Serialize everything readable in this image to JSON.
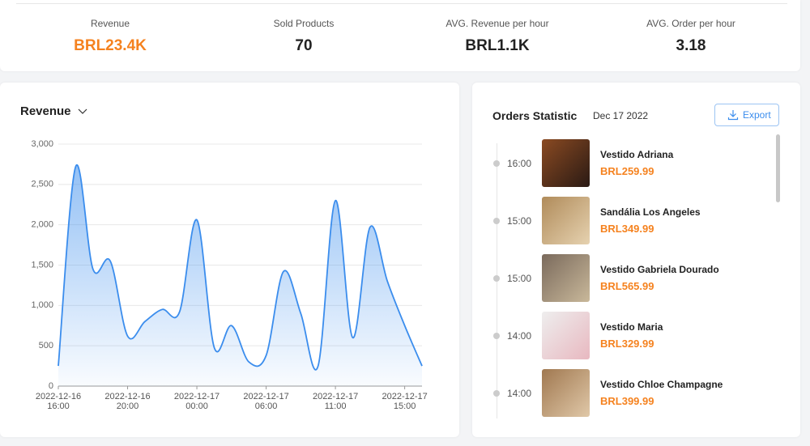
{
  "stats": [
    {
      "label": "Revenue",
      "value": "BRL23.4K"
    },
    {
      "label": "Sold Products",
      "value": "70"
    },
    {
      "label": "AVG. Revenue per hour",
      "value": "BRL1.1K"
    },
    {
      "label": "AVG. Order per hour",
      "value": "3.18"
    }
  ],
  "chart_data": {
    "type": "area",
    "title": "Revenue",
    "color": "#3b8ded",
    "grid": true,
    "categories": [
      "2022-12-16\n16:00",
      null,
      null,
      null,
      "2022-12-16\n20:00",
      null,
      null,
      null,
      "2022-12-17\n00:00",
      null,
      null,
      null,
      "2022-12-17\n06:00",
      null,
      null,
      null,
      "2022-12-17\n11:00",
      null,
      null,
      null,
      "2022-12-17\n15:00",
      null
    ],
    "values": [
      250,
      2720,
      1450,
      1550,
      620,
      800,
      950,
      920,
      2060,
      480,
      750,
      300,
      380,
      1420,
      900,
      250,
      2300,
      600,
      1970,
      1300,
      750,
      250
    ],
    "ylim": [
      0,
      3000
    ],
    "yticks": [
      0,
      500,
      {
        "value": 1000,
        "label": "1,000"
      },
      {
        "value": 1500,
        "label": "1,500"
      },
      {
        "value": 2000,
        "label": "2,000"
      },
      {
        "value": 2500,
        "label": "2,500"
      },
      {
        "value": 3000,
        "label": "3,000"
      }
    ]
  },
  "orders": {
    "title": "Orders Statistic",
    "date": "Dec 17 2022",
    "export": "Export",
    "items": [
      {
        "time": "16:00",
        "name": "Vestido Adriana",
        "price": "BRL259.99"
      },
      {
        "time": "15:00",
        "name": "Sandália Los Angeles",
        "price": "BRL349.99"
      },
      {
        "time": "15:00",
        "name": "Vestido Gabriela Dourado",
        "price": "BRL565.99"
      },
      {
        "time": "14:00",
        "name": "Vestido Maria",
        "price": "BRL329.99"
      },
      {
        "time": "14:00",
        "name": "Vestido Chloe Champagne",
        "price": "BRL399.99"
      }
    ]
  }
}
